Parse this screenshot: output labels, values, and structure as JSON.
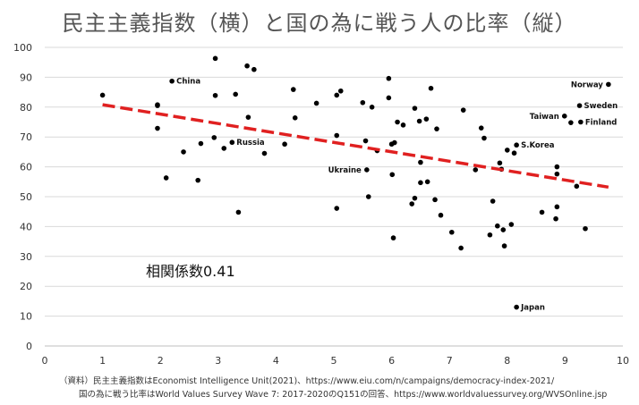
{
  "title": "民主主義指数（横）と国の為に戦う人の比率（縦）",
  "correlation_label": "相関係数0.41",
  "notes": {
    "line1": "（資料）民主主義指数はEconomist Intelligence Unit(2021)、https://www.eiu.com/n/campaigns/democracy-index-2021/",
    "line2": "国の為に戦う比率はWorld Values Survey Wave 7: 2017-2020のQ151の回答、https://www.worldvaluessurvey.org/WVSOnline.jsp"
  },
  "colors": {
    "trend": "#e02020",
    "point": "#000000",
    "grid": "#d9d9d9",
    "axis": "#bfbfbf"
  },
  "chart_data": {
    "type": "scatter",
    "xlim": [
      0,
      10
    ],
    "ylim": [
      0,
      100
    ],
    "x_ticks": [
      0,
      1,
      2,
      3,
      4,
      5,
      6,
      7,
      8,
      9,
      10
    ],
    "y_ticks": [
      0,
      10,
      20,
      30,
      40,
      50,
      60,
      70,
      80,
      90,
      100
    ],
    "grid": "horizontal",
    "trendline": {
      "x": [
        1,
        9.75
      ],
      "y": [
        80.8,
        53.2
      ]
    },
    "points": [
      {
        "x": 1.0,
        "y": 84.0
      },
      {
        "x": 1.95,
        "y": 80.5
      },
      {
        "x": 1.95,
        "y": 80.8
      },
      {
        "x": 1.95,
        "y": 72.9
      },
      {
        "x": 2.1,
        "y": 56.3
      },
      {
        "x": 2.2,
        "y": 88.7,
        "label": "China"
      },
      {
        "x": 2.4,
        "y": 65.0
      },
      {
        "x": 2.65,
        "y": 55.5
      },
      {
        "x": 2.7,
        "y": 67.8
      },
      {
        "x": 2.93,
        "y": 69.8
      },
      {
        "x": 2.95,
        "y": 96.3
      },
      {
        "x": 2.95,
        "y": 83.9
      },
      {
        "x": 3.1,
        "y": 66.2
      },
      {
        "x": 3.24,
        "y": 68.2,
        "label": "Russia"
      },
      {
        "x": 3.3,
        "y": 84.3
      },
      {
        "x": 3.35,
        "y": 44.8
      },
      {
        "x": 3.5,
        "y": 93.8
      },
      {
        "x": 3.52,
        "y": 76.6
      },
      {
        "x": 3.62,
        "y": 92.6
      },
      {
        "x": 3.8,
        "y": 64.5
      },
      {
        "x": 4.15,
        "y": 67.6
      },
      {
        "x": 4.3,
        "y": 85.9
      },
      {
        "x": 4.33,
        "y": 76.4
      },
      {
        "x": 4.7,
        "y": 81.3
      },
      {
        "x": 5.05,
        "y": 46.1
      },
      {
        "x": 5.05,
        "y": 70.5
      },
      {
        "x": 5.05,
        "y": 84.0
      },
      {
        "x": 5.12,
        "y": 85.4
      },
      {
        "x": 5.5,
        "y": 81.5
      },
      {
        "x": 5.55,
        "y": 68.7
      },
      {
        "x": 5.57,
        "y": 59.0,
        "label": "Ukraine"
      },
      {
        "x": 5.6,
        "y": 50.0
      },
      {
        "x": 5.66,
        "y": 80.0
      },
      {
        "x": 5.75,
        "y": 65.4
      },
      {
        "x": 5.95,
        "y": 89.6
      },
      {
        "x": 5.95,
        "y": 83.1
      },
      {
        "x": 6.0,
        "y": 67.6
      },
      {
        "x": 6.01,
        "y": 57.4
      },
      {
        "x": 6.03,
        "y": 36.2
      },
      {
        "x": 6.05,
        "y": 68.1
      },
      {
        "x": 6.1,
        "y": 75.0
      },
      {
        "x": 6.2,
        "y": 74.0
      },
      {
        "x": 6.35,
        "y": 47.6
      },
      {
        "x": 6.4,
        "y": 49.5
      },
      {
        "x": 6.4,
        "y": 79.6
      },
      {
        "x": 6.48,
        "y": 75.3
      },
      {
        "x": 6.5,
        "y": 54.7
      },
      {
        "x": 6.5,
        "y": 61.5
      },
      {
        "x": 6.6,
        "y": 76.0
      },
      {
        "x": 6.62,
        "y": 55.0
      },
      {
        "x": 6.68,
        "y": 86.3
      },
      {
        "x": 6.75,
        "y": 49.0
      },
      {
        "x": 6.78,
        "y": 72.7
      },
      {
        "x": 6.85,
        "y": 43.8
      },
      {
        "x": 7.04,
        "y": 38.1
      },
      {
        "x": 7.2,
        "y": 32.8
      },
      {
        "x": 7.24,
        "y": 79.0
      },
      {
        "x": 7.45,
        "y": 59.0
      },
      {
        "x": 7.55,
        "y": 73.0
      },
      {
        "x": 7.6,
        "y": 69.6
      },
      {
        "x": 7.7,
        "y": 37.2
      },
      {
        "x": 7.75,
        "y": 48.5
      },
      {
        "x": 7.83,
        "y": 40.2
      },
      {
        "x": 7.87,
        "y": 61.3
      },
      {
        "x": 7.9,
        "y": 59.2
      },
      {
        "x": 7.93,
        "y": 38.9
      },
      {
        "x": 7.95,
        "y": 33.5
      },
      {
        "x": 8.0,
        "y": 65.6
      },
      {
        "x": 8.07,
        "y": 40.7
      },
      {
        "x": 8.12,
        "y": 64.6
      },
      {
        "x": 8.16,
        "y": 13.0,
        "label": "Japan"
      },
      {
        "x": 8.16,
        "y": 67.3,
        "label": "S.Korea"
      },
      {
        "x": 8.6,
        "y": 44.8
      },
      {
        "x": 8.84,
        "y": 42.6
      },
      {
        "x": 8.86,
        "y": 46.6
      },
      {
        "x": 8.86,
        "y": 57.6
      },
      {
        "x": 8.86,
        "y": 60.0
      },
      {
        "x": 8.99,
        "y": 77.0,
        "label": "Taiwan"
      },
      {
        "x": 9.1,
        "y": 74.8
      },
      {
        "x": 9.2,
        "y": 53.5
      },
      {
        "x": 9.25,
        "y": 80.5,
        "label": "Sweden"
      },
      {
        "x": 9.27,
        "y": 75.0,
        "label": "Finland"
      },
      {
        "x": 9.35,
        "y": 39.3
      },
      {
        "x": 9.75,
        "y": 87.6,
        "label": "Norway"
      }
    ]
  }
}
